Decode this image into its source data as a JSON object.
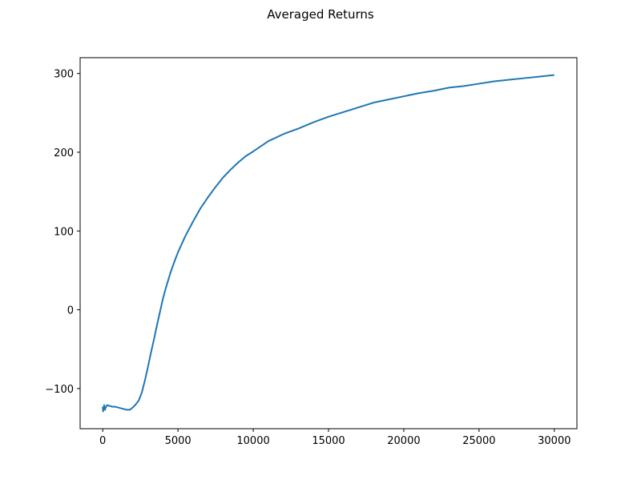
{
  "chart_data": {
    "type": "line",
    "title": "Averaged Returns",
    "xlabel": "",
    "ylabel": "",
    "xlim": [
      -1500,
      31500
    ],
    "ylim": [
      -151,
      320
    ],
    "xticks": [
      0,
      5000,
      10000,
      15000,
      20000,
      25000,
      30000
    ],
    "xtick_labels": [
      "0",
      "5000",
      "10000",
      "15000",
      "20000",
      "25000",
      "30000"
    ],
    "yticks": [
      -100,
      0,
      100,
      200,
      300
    ],
    "ytick_labels": [
      "−100",
      "0",
      "100",
      "200",
      "300"
    ],
    "grid": false,
    "legend": "none",
    "series": [
      {
        "color": "#1f77b4",
        "x": [
          0,
          30,
          60,
          100,
          150,
          200,
          300,
          400,
          500,
          600,
          800,
          1000,
          1200,
          1400,
          1600,
          1800,
          2000,
          2200,
          2400,
          2600,
          2800,
          3000,
          3200,
          3400,
          3600,
          3800,
          4000,
          4200,
          4500,
          4800,
          5000,
          5500,
          6000,
          6500,
          7000,
          7500,
          8000,
          8500,
          9000,
          9500,
          10000,
          11000,
          12000,
          13000,
          14000,
          15000,
          16000,
          17000,
          18000,
          19000,
          20000,
          21000,
          22000,
          23000,
          24000,
          25000,
          26000,
          27000,
          28000,
          29000,
          30000
        ],
        "y": [
          -123,
          -129,
          -125,
          -121,
          -127,
          -124,
          -121,
          -122,
          -122,
          -123,
          -123,
          -124,
          -125,
          -126,
          -127,
          -127,
          -124,
          -120,
          -115,
          -105,
          -90,
          -73,
          -55,
          -38,
          -20,
          -3,
          14,
          28,
          47,
          63,
          73,
          94,
          112,
          129,
          143,
          156,
          168,
          178,
          187,
          195,
          201,
          214,
          223,
          230,
          238,
          245,
          251,
          257,
          263,
          267,
          271,
          275,
          278,
          282,
          284,
          287,
          290,
          292,
          294,
          296,
          298
        ]
      }
    ]
  }
}
